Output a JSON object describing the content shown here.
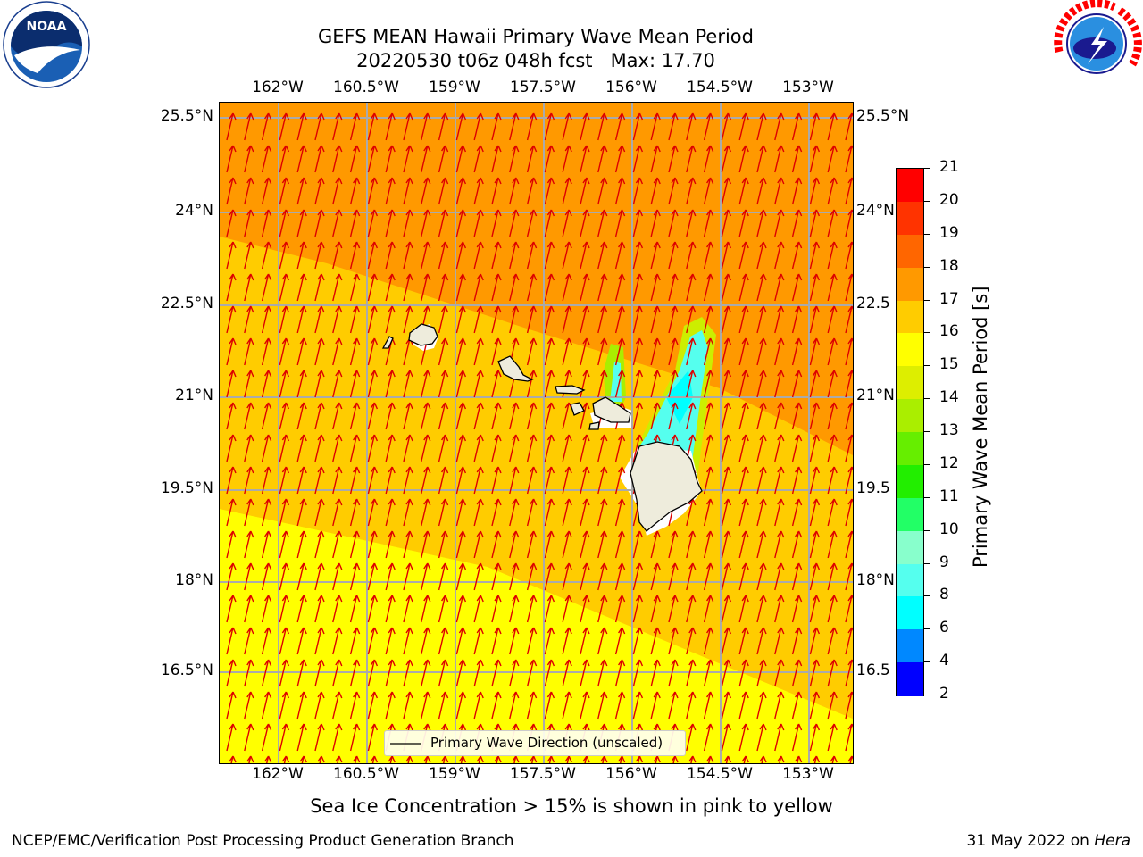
{
  "title": {
    "line1": "GEFS MEAN Hawaii Primary Wave Mean Period",
    "line2": "20220530 t06z 048h fcst   Max: 17.70"
  },
  "logos": {
    "left": {
      "text": "NOAA",
      "icon": "noaa-logo"
    },
    "right": {
      "text": "NATIONAL WEATHER SERVICE",
      "icon": "nws-logo"
    }
  },
  "map": {
    "lon_ticks": [
      "162°W",
      "160.5°W",
      "159°W",
      "157.5°W",
      "156°W",
      "154.5°W",
      "153°W"
    ],
    "lat_ticks_left": [
      "25.5°N",
      "24°N",
      "22.5°N",
      "21°N",
      "19.5°N",
      "18°N",
      "16.5°N"
    ],
    "lat_ticks_right": [
      "25.5°N",
      "24°N",
      "22.5",
      "21°N",
      "19.5",
      "18°N",
      "16.5"
    ],
    "legend_label": "Primary Wave Direction (unscaled)"
  },
  "colorbar": {
    "label": "Primary Wave Mean Period [s]",
    "ticks": [
      "21",
      "20",
      "19",
      "18",
      "17",
      "16",
      "15",
      "14",
      "13",
      "12",
      "11",
      "10",
      "9",
      "8",
      "6",
      "4",
      "2"
    ],
    "colors": [
      "#ff0000",
      "#ff3300",
      "#ff6600",
      "#ff9900",
      "#ffcc00",
      "#ffff00",
      "#ddee00",
      "#aaee00",
      "#66ee00",
      "#22ee00",
      "#22ff66",
      "#88ffcc",
      "#55ffee",
      "#00ffff",
      "#0088ff",
      "#0000ff"
    ]
  },
  "caption": "Sea Ice Concentration > 15% is shown in pink to yellow",
  "footer": {
    "left": "NCEP/EMC/Verification Post Processing Product Generation Branch",
    "right_date": "31 May 2022 on ",
    "right_host": "Hera"
  },
  "chart_data": {
    "type": "heatmap",
    "title": "GEFS MEAN Hawaii Primary Wave Mean Period",
    "subtitle": "20220530 t06z 048h fcst   Max: 17.70",
    "xlim": [
      -163,
      -152.2
    ],
    "ylim": [
      15.2,
      25.8
    ],
    "color_scale_label": "Primary Wave Mean Period [s]",
    "color_levels": [
      2,
      4,
      6,
      8,
      9,
      10,
      11,
      12,
      13,
      14,
      15,
      16,
      17,
      18,
      19,
      20,
      21
    ],
    "max": 17.7,
    "field_description": [
      {
        "region": "north",
        "period_range": [
          17,
          18
        ]
      },
      {
        "region": "central band",
        "period_range": [
          16,
          17
        ]
      },
      {
        "region": "south",
        "period_range": [
          15,
          16
        ]
      },
      {
        "region": "lee of Maui / Big Island",
        "period_range": [
          6,
          10
        ]
      }
    ],
    "vector_label": "Primary Wave Direction (unscaled)"
  }
}
